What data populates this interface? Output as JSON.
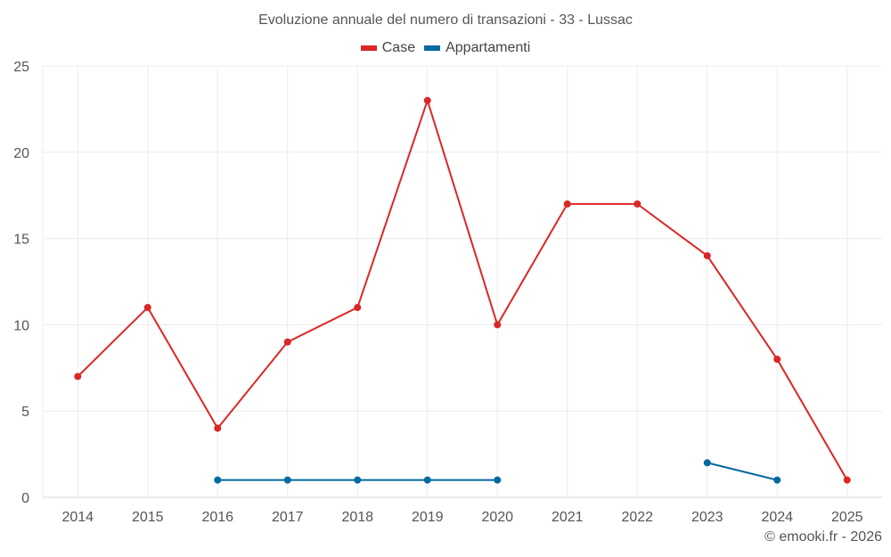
{
  "chart_data": {
    "type": "line",
    "title": "Evoluzione annuale del numero di transazioni - 33 - Lussac",
    "xlabel": "",
    "ylabel": "",
    "x": [
      "2014",
      "2015",
      "2016",
      "2017",
      "2018",
      "2019",
      "2020",
      "2021",
      "2022",
      "2023",
      "2024",
      "2025"
    ],
    "ylim": [
      0,
      25
    ],
    "yticks": [
      0,
      5,
      10,
      15,
      20,
      25
    ],
    "grid": true,
    "legend_position": "top",
    "series": [
      {
        "name": "Case",
        "color": "#dc2626",
        "values": [
          7,
          11,
          4,
          9,
          11,
          23,
          10,
          17,
          17,
          14,
          8,
          1
        ]
      },
      {
        "name": "Appartamenti",
        "color": "#0369a1",
        "values": [
          null,
          null,
          1,
          1,
          1,
          1,
          1,
          null,
          null,
          2,
          1,
          null
        ]
      }
    ]
  },
  "header": {
    "title": "Evoluzione annuale del numero di transazioni - 33 - Lussac"
  },
  "legend": [
    {
      "label": "Case",
      "color": "#dc2626"
    },
    {
      "label": "Appartamenti",
      "color": "#0369a1"
    }
  ],
  "footer": {
    "credit": "© emooki.fr - 2026"
  }
}
